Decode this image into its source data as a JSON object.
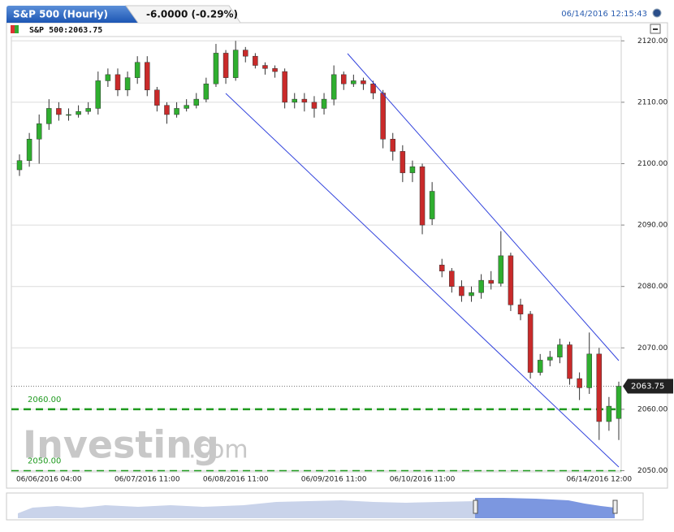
{
  "header": {
    "title": "S&P 500 (Hourly)",
    "change": "-6.0000 (-0.29%)",
    "timestamp": "06/14/2016 12:15:43"
  },
  "chart_data": {
    "type": "candlestick",
    "legend": "S&P 500:2063.75",
    "categories": [
      null,
      null,
      null,
      "06/06/2016 04:00",
      null,
      null,
      null,
      null,
      null,
      null,
      null,
      null,
      null,
      "06/07/2016 11:00",
      null,
      null,
      null,
      null,
      null,
      null,
      null,
      null,
      "06/08/2016 11:00",
      null,
      null,
      null,
      null,
      null,
      null,
      null,
      null,
      null,
      "06/09/2016 11:00",
      null,
      null,
      null,
      null,
      null,
      null,
      null,
      null,
      "06/10/2016 11:00",
      null,
      null,
      null,
      null,
      null,
      null,
      null,
      null,
      null,
      null,
      null,
      null,
      null,
      null,
      null,
      null,
      null,
      "06/14/2016 12:00",
      null,
      null
    ],
    "open": [
      2099,
      2100.5,
      2104,
      2106.5,
      2109,
      2108,
      2108,
      2108.5,
      2109,
      2113.5,
      2114.5,
      2112,
      2114,
      2116.5,
      2112,
      2109.5,
      2108,
      2109,
      2109.5,
      2110.5,
      2113,
      2118,
      2114,
      2118.5,
      2117.5,
      2116,
      2115.5,
      2115,
      2110,
      2110.5,
      2110,
      2109,
      2110.5,
      2114.5,
      2113,
      2113.5,
      2113,
      2111.5,
      2104,
      2102,
      2098.5,
      2099.5,
      2091,
      2083.5,
      2082.5,
      2080,
      2078.5,
      2079,
      2081,
      2080.5,
      2085,
      2077,
      2075.5,
      2066,
      2068,
      2068.5,
      2070.5,
      2065,
      2063.5,
      2069,
      2058,
      2058.5
    ],
    "high": [
      2101.5,
      2105,
      2108,
      2110.5,
      2110,
      2109,
      2109.5,
      2110,
      2115,
      2115.5,
      2115.5,
      2115,
      2117.5,
      2117.5,
      2112.5,
      2110,
      2110,
      2110.5,
      2111.5,
      2114,
      2119.5,
      2118.5,
      2120,
      2119,
      2118,
      2116.5,
      2116,
      2115.5,
      2111.5,
      2111.5,
      2111,
      2111.5,
      2116,
      2115,
      2114.5,
      2114,
      2113.5,
      2112,
      2105,
      2103,
      2100.5,
      2100,
      2097,
      2084.5,
      2083,
      2081,
      2080,
      2082,
      2082.5,
      2089,
      2085.5,
      2078,
      2076,
      2069,
      2069.5,
      2071.5,
      2071,
      2066,
      2072.5,
      2070,
      2062,
      2064.5
    ],
    "low": [
      2098,
      2099.5,
      2100,
      2105.5,
      2107,
      2107,
      2107.5,
      2108,
      2108,
      2112.5,
      2111,
      2111,
      2113,
      2111,
      2108.5,
      2106.5,
      2107.5,
      2108.5,
      2109,
      2110,
      2112.5,
      2113,
      2113.5,
      2116.5,
      2115.5,
      2114.5,
      2114,
      2109,
      2109,
      2108.5,
      2107.5,
      2108,
      2109.5,
      2112,
      2112.5,
      2112,
      2110.5,
      2102.5,
      2100.5,
      2097,
      2097,
      2088.5,
      2090,
      2081.5,
      2079,
      2077.5,
      2077.5,
      2078,
      2079.5,
      2080,
      2076,
      2074.5,
      2065,
      2065.5,
      2067,
      2067.5,
      2064,
      2061.5,
      2062.5,
      2055,
      2056.5,
      2055
    ],
    "close": [
      2100.5,
      2104,
      2106.5,
      2109,
      2108,
      2108,
      2108.5,
      2109,
      2113.5,
      2114.5,
      2112,
      2114,
      2116.5,
      2112,
      2109.5,
      2108,
      2109,
      2109.5,
      2110.5,
      2113,
      2118,
      2114,
      2118.5,
      2117.5,
      2116,
      2115.5,
      2115,
      2110,
      2110.5,
      2110,
      2109,
      2110.5,
      2114.5,
      2113,
      2113.5,
      2113,
      2111.5,
      2104,
      2102,
      2098.5,
      2099.5,
      2090,
      2095.5,
      2082.5,
      2080,
      2078.5,
      2079,
      2081,
      2080.5,
      2085,
      2077,
      2075.5,
      2066,
      2068,
      2068.5,
      2070.5,
      2065,
      2063.5,
      2069,
      2058,
      2060.5,
      2063.75
    ],
    "up_color": "#2fae2f",
    "down_color": "#c92a2a",
    "ylim": [
      2049.8,
      2120.7
    ],
    "yticks": [
      {
        "value": 2050,
        "label": "2050.00"
      },
      {
        "value": 2060,
        "label": "2060.00"
      },
      {
        "value": 2070,
        "label": "2070.00"
      },
      {
        "value": 2080,
        "label": "2080.00"
      },
      {
        "value": 2090,
        "label": "2090.00"
      },
      {
        "value": 2100,
        "label": "2100.00"
      },
      {
        "value": 2110,
        "label": "2110.00"
      },
      {
        "value": 2120,
        "label": "2120.00"
      }
    ],
    "grid": true,
    "levels": [
      {
        "value": 2060,
        "label": "2060.00",
        "color": "#1f9a1f"
      },
      {
        "value": 2050,
        "label": "2050.00",
        "color": "#1f9a1f"
      }
    ],
    "last": {
      "value": 2063.75,
      "label": "2063.75"
    },
    "watermark": [
      "Investing",
      ".com"
    ]
  }
}
